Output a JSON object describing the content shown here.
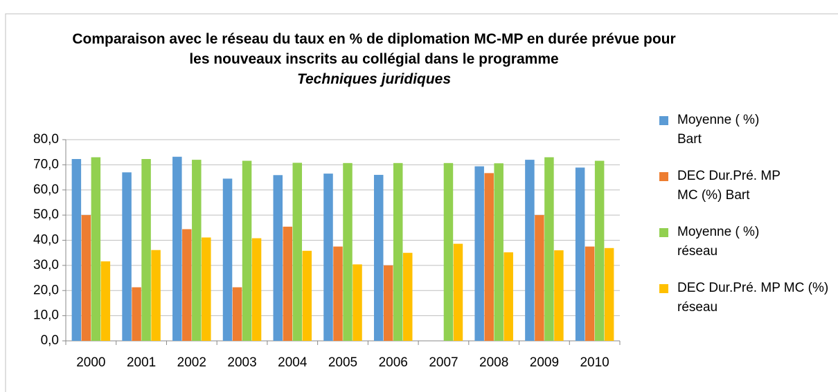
{
  "chart_data": {
    "type": "bar",
    "title": "Comparaison avec le réseau du taux en % de diplomation MC-MP en durée prévue pour les nouveaux inscrits au collégial dans le programme",
    "subtitle": "Techniques juridiques",
    "categories": [
      "2000",
      "2001",
      "2002",
      "2003",
      "2004",
      "2005",
      "2006",
      "2007",
      "2008",
      "2009",
      "2010"
    ],
    "series": [
      {
        "name": "Moyenne ( %) Bart",
        "color": "#5b9bd5",
        "values": [
          72.3,
          67.0,
          73.2,
          64.5,
          65.9,
          66.5,
          66.0,
          null,
          69.4,
          72.0,
          68.9
        ]
      },
      {
        "name": "DEC  Dur.Pré. MP MC (%) Bart",
        "color": "#ed7d31",
        "values": [
          50.0,
          21.3,
          44.4,
          21.3,
          45.4,
          37.5,
          30.0,
          null,
          66.7,
          50.0,
          37.5
        ]
      },
      {
        "name": "Moyenne ( %) réseau",
        "color": "#92d050",
        "values": [
          73.0,
          72.3,
          72.0,
          71.6,
          70.8,
          70.7,
          70.7,
          70.7,
          70.6,
          73.0,
          71.6
        ]
      },
      {
        "name": "DEC  Dur.Pré. MP MC (%) réseau",
        "color": "#ffc000",
        "values": [
          31.6,
          36.1,
          41.1,
          40.8,
          35.8,
          30.4,
          35.0,
          38.6,
          35.2,
          36.0,
          36.9
        ]
      }
    ],
    "ylim": [
      0,
      80
    ],
    "yticks": [
      {
        "value": 0,
        "label": "0,0"
      },
      {
        "value": 10,
        "label": "10,0"
      },
      {
        "value": 20,
        "label": "20,0"
      },
      {
        "value": 30,
        "label": "30,0"
      },
      {
        "value": 40,
        "label": "40,0"
      },
      {
        "value": 50,
        "label": "50,0"
      },
      {
        "value": 60,
        "label": "60,0"
      },
      {
        "value": 70,
        "label": "70,0"
      },
      {
        "value": 80,
        "label": "80,0"
      }
    ],
    "grid": true,
    "legend": "right"
  }
}
